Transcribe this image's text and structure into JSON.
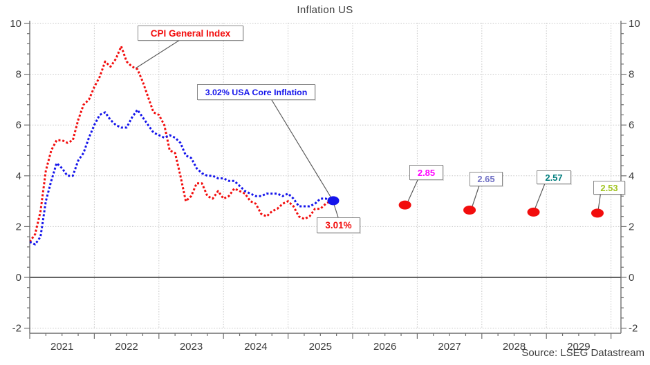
{
  "window": {
    "title": "Inflation US",
    "source": "Source: LSEG Datastream"
  },
  "annotations": {
    "cpi_series_label": {
      "text": "CPI General Index",
      "color": "#f20d0d"
    },
    "core_series_label": {
      "text": "3.02% USA Core Inflation",
      "color": "#1414eb"
    },
    "cpi_latest_label": {
      "text": "3.01%",
      "color": "#f20d0d"
    },
    "forecasts": [
      {
        "text": "2.85",
        "value": 2.85,
        "year_position": 2026.81,
        "color": "#ff00ff"
      },
      {
        "text": "2.65",
        "value": 2.65,
        "year_position": 2027.81,
        "color": "#6f6fc4"
      },
      {
        "text": "2.57",
        "value": 2.57,
        "year_position": 2028.8,
        "color": "#007d7d"
      },
      {
        "text": "2.53",
        "value": 2.53,
        "year_position": 2029.79,
        "color": "#a0c420"
      }
    ]
  },
  "chart_data": {
    "type": "line",
    "title": "Inflation US",
    "xlabel": "",
    "ylabel": "",
    "ylim": [
      -2.2,
      10.2
    ],
    "y_major_ticks": [
      10,
      8,
      6,
      4,
      2,
      0,
      -2
    ],
    "y_minor_step": 0.4,
    "x_year_labels": [
      "2021",
      "2022",
      "2023",
      "2024",
      "2025",
      "2026",
      "2027",
      "2028",
      "2029"
    ],
    "x_range_years": [
      2021,
      2030.16
    ],
    "x_minor": "quarterly",
    "grid": "dotted light-grey major gridlines, solid dark line at zero",
    "legend_position": "callout boxes instead of legend",
    "start": "2021-01",
    "frequency": "monthly",
    "series": [
      {
        "name": "CPI General Index",
        "color": "#f20d0d",
        "style": "dotted",
        "values": [
          1.4,
          1.7,
          2.6,
          4.2,
          5.0,
          5.4,
          5.4,
          5.3,
          5.4,
          6.2,
          6.8,
          7.0,
          7.5,
          7.9,
          8.5,
          8.3,
          8.6,
          9.1,
          8.5,
          8.3,
          8.2,
          7.7,
          7.1,
          6.5,
          6.4,
          6.0,
          5.0,
          4.9,
          4.0,
          3.0,
          3.2,
          3.7,
          3.7,
          3.2,
          3.1,
          3.4,
          3.1,
          3.2,
          3.5,
          3.4,
          3.3,
          3.0,
          2.9,
          2.5,
          2.4,
          2.6,
          2.7,
          2.9,
          3.0,
          2.8,
          2.4,
          2.3,
          2.4,
          2.7,
          2.7,
          2.9,
          3.01
        ]
      },
      {
        "name": "USA Core Inflation",
        "color": "#1414eb",
        "style": "dotted",
        "values": [
          1.4,
          1.3,
          1.6,
          3.0,
          3.8,
          4.5,
          4.3,
          4.0,
          4.0,
          4.6,
          4.9,
          5.5,
          6.0,
          6.4,
          6.5,
          6.2,
          6.0,
          5.9,
          5.9,
          6.3,
          6.6,
          6.3,
          6.0,
          5.7,
          5.6,
          5.5,
          5.6,
          5.5,
          5.3,
          4.8,
          4.7,
          4.3,
          4.1,
          4.0,
          4.0,
          3.9,
          3.9,
          3.8,
          3.8,
          3.6,
          3.4,
          3.3,
          3.2,
          3.2,
          3.3,
          3.3,
          3.3,
          3.2,
          3.3,
          3.1,
          2.8,
          2.8,
          2.8,
          2.9,
          3.1,
          3.1,
          3.02
        ]
      }
    ],
    "end_marker": {
      "series": "USA Core Inflation",
      "year_position": 2025.7,
      "value": 3.02,
      "color": "#1414eb"
    },
    "forecast_points": [
      {
        "year_position": 2026.81,
        "value": 2.85
      },
      {
        "year_position": 2027.81,
        "value": 2.65
      },
      {
        "year_position": 2028.8,
        "value": 2.57
      },
      {
        "year_position": 2029.79,
        "value": 2.53
      }
    ],
    "forecast_point_color": "#f20d0d"
  }
}
